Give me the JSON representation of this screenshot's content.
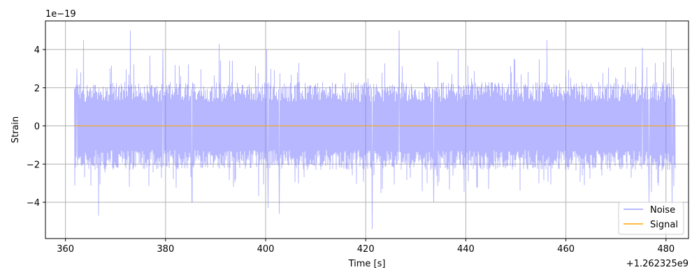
{
  "chart_data": {
    "type": "line",
    "xlabel": "Time [s]",
    "ylabel": "Strain",
    "x_offset_label": "+1.262325e9",
    "y_scale_label": "1e−19",
    "xlim": [
      356,
      484.5
    ],
    "ylim": [
      -5.9,
      5.5
    ],
    "x_ticks": [
      360,
      380,
      400,
      420,
      440,
      460,
      480
    ],
    "x_tick_labels": [
      "360",
      "380",
      "400",
      "420",
      "440",
      "460",
      "480"
    ],
    "y_ticks": [
      -4,
      -2,
      0,
      2,
      4
    ],
    "y_tick_labels": [
      "−4",
      "−2",
      "0",
      "2",
      "4"
    ],
    "grid": true,
    "legend_position": "bottom-right",
    "series": [
      {
        "name": "Noise",
        "color": "#7b7bff",
        "x_start": 361.8,
        "x_end": 481.9,
        "typical_amplitude": 2.3,
        "peaks": [
          {
            "x": 362.3,
            "y": 3.0
          },
          {
            "x": 363.6,
            "y": 4.5
          },
          {
            "x": 366.6,
            "y": -4.7
          },
          {
            "x": 373.0,
            "y": 5.0
          },
          {
            "x": 373.0,
            "y": -4.0
          },
          {
            "x": 379.5,
            "y": 4.0
          },
          {
            "x": 385.3,
            "y": -4.0
          },
          {
            "x": 390.7,
            "y": 4.3
          },
          {
            "x": 400.2,
            "y": 4.0
          },
          {
            "x": 400.5,
            "y": -4.3
          },
          {
            "x": 402.7,
            "y": -4.6
          },
          {
            "x": 421.3,
            "y": -5.4
          },
          {
            "x": 426.7,
            "y": 5.0
          },
          {
            "x": 433.6,
            "y": -4.0
          },
          {
            "x": 438.5,
            "y": -4.2
          },
          {
            "x": 438.5,
            "y": 4.0
          },
          {
            "x": 456.2,
            "y": -5.0
          },
          {
            "x": 456.2,
            "y": 4.5
          },
          {
            "x": 475.3,
            "y": 4.1
          },
          {
            "x": 476.6,
            "y": -4.0
          },
          {
            "x": 481.2,
            "y": -4.1
          },
          {
            "x": 481.1,
            "y": 4.0
          }
        ]
      },
      {
        "name": "Signal",
        "color": "#ffa500",
        "x": [
          361.8,
          481.9
        ],
        "y": [
          0,
          0
        ]
      }
    ]
  }
}
